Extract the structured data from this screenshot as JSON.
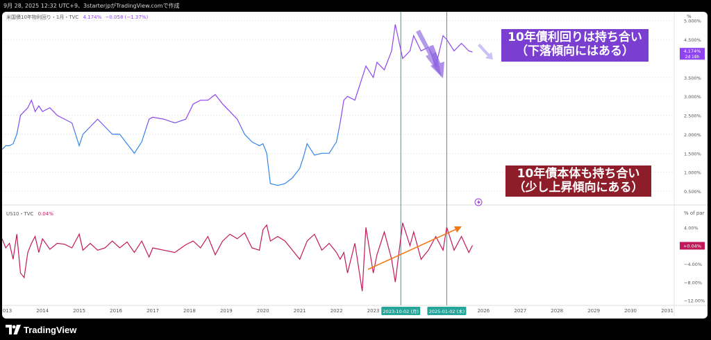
{
  "header": {
    "text": "9月 28, 2025 12:32 UTC+9、3starterjpがTradingView.comで作成"
  },
  "footer": {
    "brand": "TradingView",
    "logo_icon": "tradingview-logo-icon"
  },
  "colors": {
    "yield_high": "#8e44f0",
    "yield_low": "#2f86e8",
    "bond_line": "#c2185b",
    "arrow_orange": "#f07a1a",
    "callout_purple": "#7a3fd0",
    "callout_red": "#8e1d2a",
    "vline": "#26a69a"
  },
  "callouts": {
    "top_line1": "10年債利回りは持ち合い",
    "top_line2": "（下落傾向にはある）",
    "bottom_line1": "10年債本体も持ち合い",
    "bottom_line2": "（少し上昇傾向にある）"
  },
  "chart_data": [
    {
      "type": "line",
      "legend": {
        "symbol": "米国債10年物利回り・1月・TVC",
        "value": "4.174%",
        "change": "−0.058 (−1.37%)"
      },
      "ylabel": "%",
      "yticks": [
        "5.000%",
        "4.500%",
        "3.500%",
        "3.000%",
        "2.500%",
        "2.000%",
        "1.500%",
        "1.000%",
        "0.500%"
      ],
      "ytick_values": [
        5.0,
        4.5,
        3.5,
        3.0,
        2.5,
        2.0,
        1.5,
        1.0,
        0.5
      ],
      "ylim": [
        0.3,
        5.05
      ],
      "last_label": {
        "value": "4.174%",
        "countdown": "2d 18h"
      },
      "x": [
        2012.9,
        2013.0,
        2013.1,
        2013.2,
        2013.3,
        2013.4,
        2013.5,
        2013.6,
        2013.7,
        2013.8,
        2013.9,
        2014.0,
        2014.2,
        2014.4,
        2014.6,
        2014.8,
        2015.0,
        2015.1,
        2015.3,
        2015.5,
        2015.7,
        2015.9,
        2016.1,
        2016.3,
        2016.5,
        2016.7,
        2016.9,
        2017.0,
        2017.3,
        2017.6,
        2017.9,
        2018.1,
        2018.3,
        2018.5,
        2018.7,
        2018.9,
        2019.1,
        2019.3,
        2019.5,
        2019.7,
        2019.9,
        2020.0,
        2020.1,
        2020.2,
        2020.4,
        2020.6,
        2020.8,
        2021.0,
        2021.1,
        2021.2,
        2021.4,
        2021.6,
        2021.8,
        2022.0,
        2022.1,
        2022.2,
        2022.3,
        2022.5,
        2022.7,
        2022.8,
        2023.0,
        2023.1,
        2023.3,
        2023.5,
        2023.6,
        2023.8,
        2024.0,
        2024.1,
        2024.3,
        2024.5,
        2024.7,
        2024.9,
        2025.0,
        2025.2,
        2025.4,
        2025.6,
        2025.7
      ],
      "values": [
        1.6,
        1.7,
        1.7,
        1.75,
        2.0,
        2.5,
        2.6,
        2.7,
        2.9,
        2.6,
        2.75,
        2.6,
        2.7,
        2.5,
        2.4,
        2.3,
        1.7,
        2.0,
        2.2,
        2.4,
        2.2,
        2.0,
        2.0,
        1.75,
        1.5,
        1.8,
        2.4,
        2.45,
        2.4,
        2.3,
        2.4,
        2.8,
        2.9,
        2.9,
        3.05,
        2.8,
        2.6,
        2.4,
        2.0,
        1.8,
        1.7,
        1.75,
        1.5,
        0.7,
        0.65,
        0.7,
        0.85,
        1.1,
        1.4,
        1.75,
        1.45,
        1.5,
        1.5,
        1.8,
        2.3,
        2.9,
        3.0,
        2.9,
        3.5,
        3.8,
        3.5,
        3.9,
        3.7,
        4.2,
        4.9,
        4.0,
        4.2,
        4.6,
        4.2,
        4.3,
        3.8,
        4.6,
        4.5,
        4.2,
        4.4,
        4.2,
        4.17
      ]
    },
    {
      "type": "line",
      "legend": {
        "symbol": "US10・TVC",
        "value": "0.04%"
      },
      "ylabel": "% of par",
      "yticks": [
        "4.00%",
        "−4.00%",
        "−8.00%",
        "−12.00%"
      ],
      "ytick_values": [
        4,
        -4,
        -8,
        -12
      ],
      "ylim": [
        -12.5,
        8
      ],
      "last_label": {
        "value": "+0.04%"
      },
      "x": [
        2012.9,
        2013.0,
        2013.1,
        2013.2,
        2013.3,
        2013.4,
        2013.5,
        2013.6,
        2013.7,
        2013.8,
        2013.9,
        2014.0,
        2014.2,
        2014.4,
        2014.6,
        2014.8,
        2015.0,
        2015.1,
        2015.3,
        2015.5,
        2015.7,
        2015.9,
        2016.1,
        2016.3,
        2016.5,
        2016.7,
        2016.9,
        2017.0,
        2017.3,
        2017.6,
        2017.9,
        2018.1,
        2018.3,
        2018.5,
        2018.7,
        2018.9,
        2019.1,
        2019.3,
        2019.5,
        2019.7,
        2019.9,
        2020.0,
        2020.1,
        2020.2,
        2020.4,
        2020.6,
        2020.8,
        2021.0,
        2021.1,
        2021.2,
        2021.4,
        2021.6,
        2021.8,
        2022.0,
        2022.1,
        2022.2,
        2022.3,
        2022.5,
        2022.7,
        2022.8,
        2023.0,
        2023.1,
        2023.3,
        2023.5,
        2023.6,
        2023.8,
        2024.0,
        2024.1,
        2024.3,
        2024.5,
        2024.7,
        2024.9,
        2025.0,
        2025.2,
        2025.4,
        2025.6,
        2025.7
      ],
      "values": [
        1.5,
        -0.5,
        0.5,
        -3,
        2.5,
        -6,
        -7,
        -1.5,
        0.5,
        2,
        -1.5,
        1.5,
        -0.8,
        0.5,
        0.3,
        -0.5,
        2.5,
        -1,
        0.5,
        -1,
        -0.5,
        1,
        -0.5,
        0.8,
        -1.5,
        1,
        -2.5,
        -0.5,
        -1,
        -1.5,
        0.2,
        1,
        -0.5,
        2,
        -2,
        1,
        2.5,
        1.5,
        2.8,
        -0.5,
        -1,
        3.5,
        4.5,
        1,
        2,
        1,
        -1,
        -3,
        -1,
        1,
        2.5,
        -1,
        0.5,
        -1.5,
        -3,
        -1.5,
        -6,
        0.5,
        -10,
        4,
        -6,
        -2,
        3,
        -3,
        -8,
        5,
        0,
        3,
        -3,
        -1,
        2,
        -1,
        4,
        -1,
        2,
        -1.5,
        0.04
      ]
    }
  ],
  "x_axis": {
    "ticks": [
      "2013",
      "2014",
      "2015",
      "2016",
      "2017",
      "2018",
      "2019",
      "2020",
      "2021",
      "2022",
      "2023",
      "2026",
      "2027",
      "2028",
      "2029",
      "2030",
      "2031"
    ],
    "tick_values": [
      2013,
      2014,
      2015,
      2016,
      2017,
      2018,
      2019,
      2020,
      2021,
      2022,
      2023,
      2026,
      2027,
      2028,
      2029,
      2030,
      2031
    ],
    "markers": [
      {
        "label": "2023-10-02 (月)",
        "value": 2023.75
      },
      {
        "label": "2025-01-02 (木)",
        "value": 2025.0
      }
    ]
  }
}
